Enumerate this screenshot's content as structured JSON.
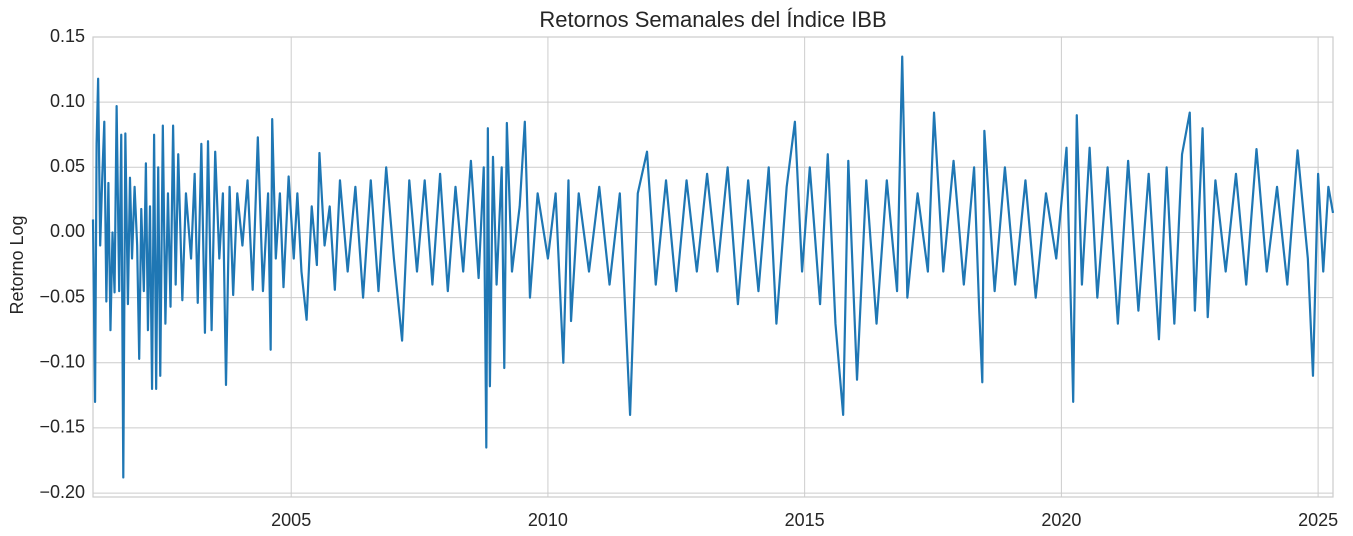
{
  "chart_data": {
    "type": "line",
    "title": "Retornos Semanales del Índice IBB",
    "ylabel": "Retorno Log",
    "grid": true,
    "xlim": [
      2001.14,
      2025.29
    ],
    "xticks": [
      2005,
      2010,
      2015,
      2020,
      2025
    ],
    "ylim": [
      -0.203,
      0.15
    ],
    "yticks": [
      {
        "value": -0.2,
        "label": "−0.20"
      },
      {
        "value": -0.15,
        "label": "−0.15"
      },
      {
        "value": -0.1,
        "label": "−0.10"
      },
      {
        "value": -0.05,
        "label": "−0.05"
      },
      {
        "value": 0,
        "label": "0.00"
      },
      0.05,
      {
        "value": 0.1,
        "label": "0.10"
      },
      0.15
    ],
    "x": [
      2001.14,
      2001.18,
      2001.21,
      2001.24,
      2001.28,
      2001.32,
      2001.36,
      2001.4,
      2001.44,
      2001.48,
      2001.52,
      2001.56,
      2001.6,
      2001.65,
      2001.69,
      2001.73,
      2001.77,
      2001.82,
      2001.86,
      2001.9,
      2001.95,
      2002.0,
      2002.04,
      2002.08,
      2002.13,
      2002.17,
      2002.21,
      2002.25,
      2002.29,
      2002.33,
      2002.37,
      2002.41,
      2002.45,
      2002.5,
      2002.55,
      2002.6,
      2002.65,
      2002.7,
      2002.75,
      2002.8,
      2002.88,
      2002.95,
      2003.05,
      2003.12,
      2003.18,
      2003.25,
      2003.32,
      2003.38,
      2003.45,
      2003.52,
      2003.6,
      2003.67,
      2003.73,
      2003.8,
      2003.87,
      2003.95,
      2004.05,
      2004.15,
      2004.25,
      2004.35,
      2004.45,
      2004.55,
      2004.6,
      2004.63,
      2004.7,
      2004.78,
      2004.85,
      2004.95,
      2005.05,
      2005.12,
      2005.2,
      2005.3,
      2005.4,
      2005.5,
      2005.55,
      2005.65,
      2005.75,
      2005.85,
      2005.95,
      2006.1,
      2006.25,
      2006.4,
      2006.55,
      2006.7,
      2006.85,
      2007.0,
      2007.16,
      2007.3,
      2007.45,
      2007.6,
      2007.75,
      2007.9,
      2008.05,
      2008.2,
      2008.35,
      2008.5,
      2008.65,
      2008.75,
      2008.8,
      2008.83,
      2008.87,
      2008.93,
      2009.0,
      2009.1,
      2009.15,
      2009.2,
      2009.3,
      2009.45,
      2009.55,
      2009.65,
      2009.8,
      2010.0,
      2010.15,
      2010.3,
      2010.4,
      2010.45,
      2010.6,
      2010.8,
      2011.0,
      2011.2,
      2011.4,
      2011.6,
      2011.75,
      2011.93,
      2012.1,
      2012.3,
      2012.5,
      2012.7,
      2012.9,
      2013.1,
      2013.3,
      2013.5,
      2013.7,
      2013.9,
      2014.1,
      2014.3,
      2014.45,
      2014.65,
      2014.81,
      2014.95,
      2015.1,
      2015.3,
      2015.45,
      2015.6,
      2015.75,
      2015.85,
      2016.02,
      2016.2,
      2016.4,
      2016.6,
      2016.8,
      2016.9,
      2017.0,
      2017.2,
      2017.4,
      2017.52,
      2017.7,
      2017.9,
      2018.1,
      2018.3,
      2018.4,
      2018.46,
      2018.5,
      2018.7,
      2018.9,
      2019.1,
      2019.3,
      2019.5,
      2019.7,
      2019.9,
      2020.1,
      2020.2,
      2020.23,
      2020.3,
      2020.4,
      2020.55,
      2020.7,
      2020.9,
      2021.1,
      2021.3,
      2021.5,
      2021.7,
      2021.9,
      2022.05,
      2022.2,
      2022.35,
      2022.5,
      2022.6,
      2022.75,
      2022.85,
      2023.0,
      2023.2,
      2023.4,
      2023.6,
      2023.8,
      2024.0,
      2024.2,
      2024.4,
      2024.6,
      2024.8,
      2024.9,
      2025.0,
      2025.1,
      2025.2,
      2025.29
    ],
    "series": [
      {
        "color": "#1f77b4",
        "values": [
          0.01,
          -0.13,
          0.068,
          0.118,
          -0.01,
          0.042,
          0.085,
          -0.053,
          0.038,
          -0.075,
          0.0,
          -0.046,
          0.097,
          -0.045,
          0.075,
          -0.188,
          0.076,
          -0.055,
          0.042,
          -0.02,
          0.035,
          -0.01,
          -0.097,
          0.018,
          -0.045,
          0.053,
          -0.075,
          0.02,
          -0.12,
          0.075,
          -0.12,
          0.05,
          -0.11,
          0.082,
          -0.07,
          0.03,
          -0.057,
          0.082,
          -0.04,
          0.06,
          -0.052,
          0.03,
          -0.02,
          0.045,
          -0.054,
          0.068,
          -0.077,
          0.07,
          -0.075,
          0.062,
          -0.02,
          0.03,
          -0.117,
          0.035,
          -0.048,
          0.03,
          -0.01,
          0.04,
          -0.044,
          0.073,
          -0.045,
          0.03,
          -0.09,
          0.087,
          -0.02,
          0.03,
          -0.042,
          0.043,
          -0.02,
          0.03,
          -0.03,
          -0.067,
          0.02,
          -0.025,
          0.061,
          -0.01,
          0.02,
          -0.044,
          0.04,
          -0.03,
          0.035,
          -0.05,
          0.04,
          -0.045,
          0.05,
          -0.02,
          -0.083,
          0.04,
          -0.03,
          0.04,
          -0.04,
          0.045,
          -0.045,
          0.035,
          -0.03,
          0.055,
          -0.035,
          0.05,
          -0.165,
          0.08,
          -0.118,
          0.058,
          -0.04,
          0.05,
          -0.104,
          0.084,
          -0.03,
          0.02,
          0.085,
          -0.05,
          0.03,
          -0.02,
          0.03,
          -0.1,
          0.04,
          -0.068,
          0.03,
          -0.03,
          0.035,
          -0.04,
          0.03,
          -0.14,
          0.03,
          0.062,
          -0.04,
          0.04,
          -0.045,
          0.04,
          -0.03,
          0.045,
          -0.03,
          0.05,
          -0.055,
          0.04,
          -0.045,
          0.05,
          -0.07,
          0.035,
          0.085,
          -0.03,
          0.05,
          -0.055,
          0.06,
          -0.07,
          -0.14,
          0.055,
          -0.113,
          0.04,
          -0.07,
          0.04,
          -0.045,
          0.135,
          -0.05,
          0.03,
          -0.03,
          0.092,
          -0.03,
          0.055,
          -0.04,
          0.05,
          -0.06,
          -0.115,
          0.078,
          -0.045,
          0.05,
          -0.04,
          0.04,
          -0.05,
          0.03,
          -0.02,
          0.065,
          -0.078,
          -0.13,
          0.09,
          -0.04,
          0.065,
          -0.05,
          0.05,
          -0.07,
          0.055,
          -0.06,
          0.045,
          -0.082,
          0.05,
          -0.07,
          0.06,
          0.092,
          -0.06,
          0.08,
          -0.065,
          0.04,
          -0.03,
          0.045,
          -0.04,
          0.064,
          -0.03,
          0.035,
          -0.04,
          0.063,
          -0.02,
          -0.11,
          0.045,
          -0.03,
          0.035,
          0.015
        ]
      }
    ]
  }
}
